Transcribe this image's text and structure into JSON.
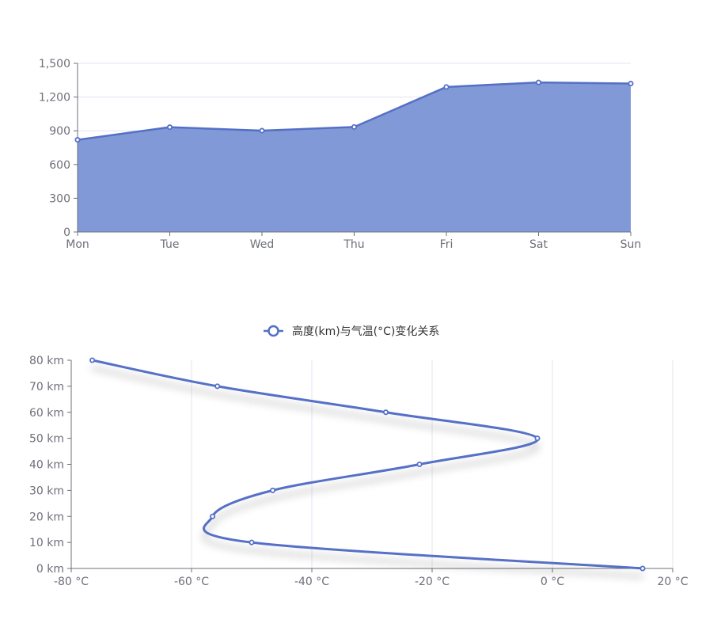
{
  "chart_data": [
    {
      "type": "area",
      "categories": [
        "Mon",
        "Tue",
        "Wed",
        "Thu",
        "Fri",
        "Sat",
        "Sun"
      ],
      "values": [
        820,
        932,
        901,
        934,
        1290,
        1330,
        1320
      ],
      "ylim": [
        0,
        1500
      ],
      "yticks": [
        0,
        300,
        600,
        900,
        1200,
        1500
      ],
      "ytick_labels": [
        "0",
        "300",
        "600",
        "900",
        "1,200",
        "1,500"
      ],
      "grid": true,
      "color": "#5470c6",
      "fill_color": "#8199d6"
    },
    {
      "type": "line",
      "legend": "高度(km)与气温(°C)变化关系",
      "legend_position": "top-center",
      "x": [
        15,
        -50,
        -56.5,
        -46.5,
        -22.1,
        -2.5,
        -27.7,
        -55.7,
        -76.5
      ],
      "y": [
        0,
        10,
        20,
        30,
        40,
        50,
        60,
        70,
        80
      ],
      "xlim": [
        -80,
        20
      ],
      "ylim": [
        0,
        80
      ],
      "xticks": [
        -80,
        -60,
        -40,
        -20,
        0,
        20
      ],
      "xtick_labels": [
        "-80 °C",
        "-60 °C",
        "-40 °C",
        "-20 °C",
        "0 °C",
        "20 °C"
      ],
      "yticks": [
        0,
        10,
        20,
        30,
        40,
        50,
        60,
        70,
        80
      ],
      "ytick_labels": [
        "0 km",
        "10 km",
        "20 km",
        "30 km",
        "40 km",
        "50 km",
        "60 km",
        "70 km",
        "80 km"
      ],
      "smooth": true,
      "grid": true,
      "color": "#5470c6"
    }
  ]
}
